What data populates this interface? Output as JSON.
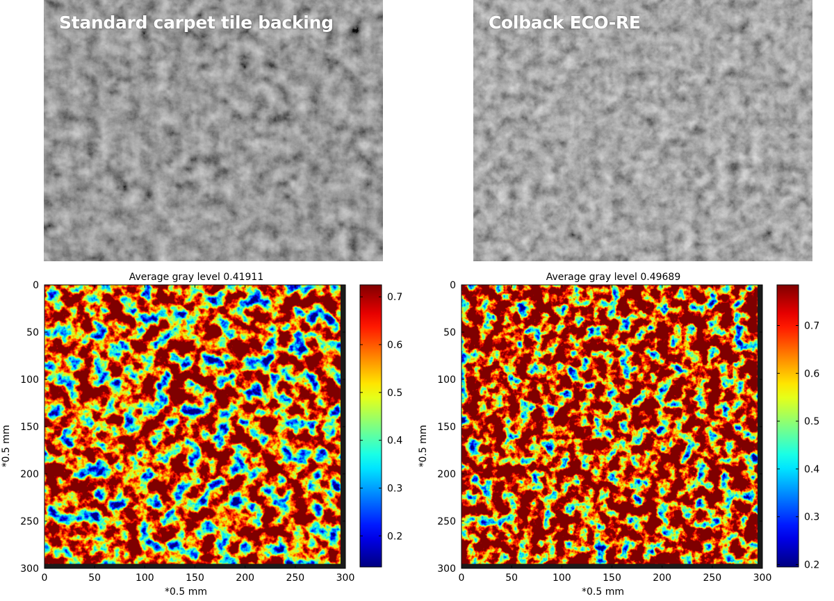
{
  "photos": [
    {
      "label": "Standard carpet tile backing"
    },
    {
      "label": "Colback ECO-RE"
    }
  ],
  "chart_data": [
    {
      "type": "heatmap",
      "title": "Average gray level 0.41911",
      "xlabel": "*0.5 mm",
      "ylabel": "*0.5 mm",
      "xticks": [
        0,
        50,
        100,
        150,
        200,
        250,
        300
      ],
      "yticks": [
        0,
        50,
        100,
        150,
        200,
        250,
        300
      ],
      "xlim": [
        0,
        300
      ],
      "ylim": [
        300,
        0
      ],
      "data_extent": 295,
      "colorbar": {
        "ticks": [
          0.2,
          0.3,
          0.4,
          0.5,
          0.6,
          0.7
        ],
        "range": [
          0.135,
          0.725
        ],
        "colormap": "jet"
      },
      "mean": 0.41911
    },
    {
      "type": "heatmap",
      "title": "Average gray level 0.49689",
      "xlabel": "*0.5 mm",
      "ylabel": "*0.5 mm",
      "xticks": [
        0,
        50,
        100,
        150,
        200,
        250,
        300
      ],
      "yticks": [
        0,
        50,
        100,
        150,
        200,
        250,
        300
      ],
      "xlim": [
        0,
        300
      ],
      "ylim": [
        300,
        0
      ],
      "data_extent": 295,
      "colorbar": {
        "ticks": [
          0.2,
          0.3,
          0.4,
          0.5,
          0.6,
          0.7
        ],
        "range": [
          0.195,
          0.785
        ],
        "colormap": "jet"
      },
      "mean": 0.49689
    }
  ]
}
